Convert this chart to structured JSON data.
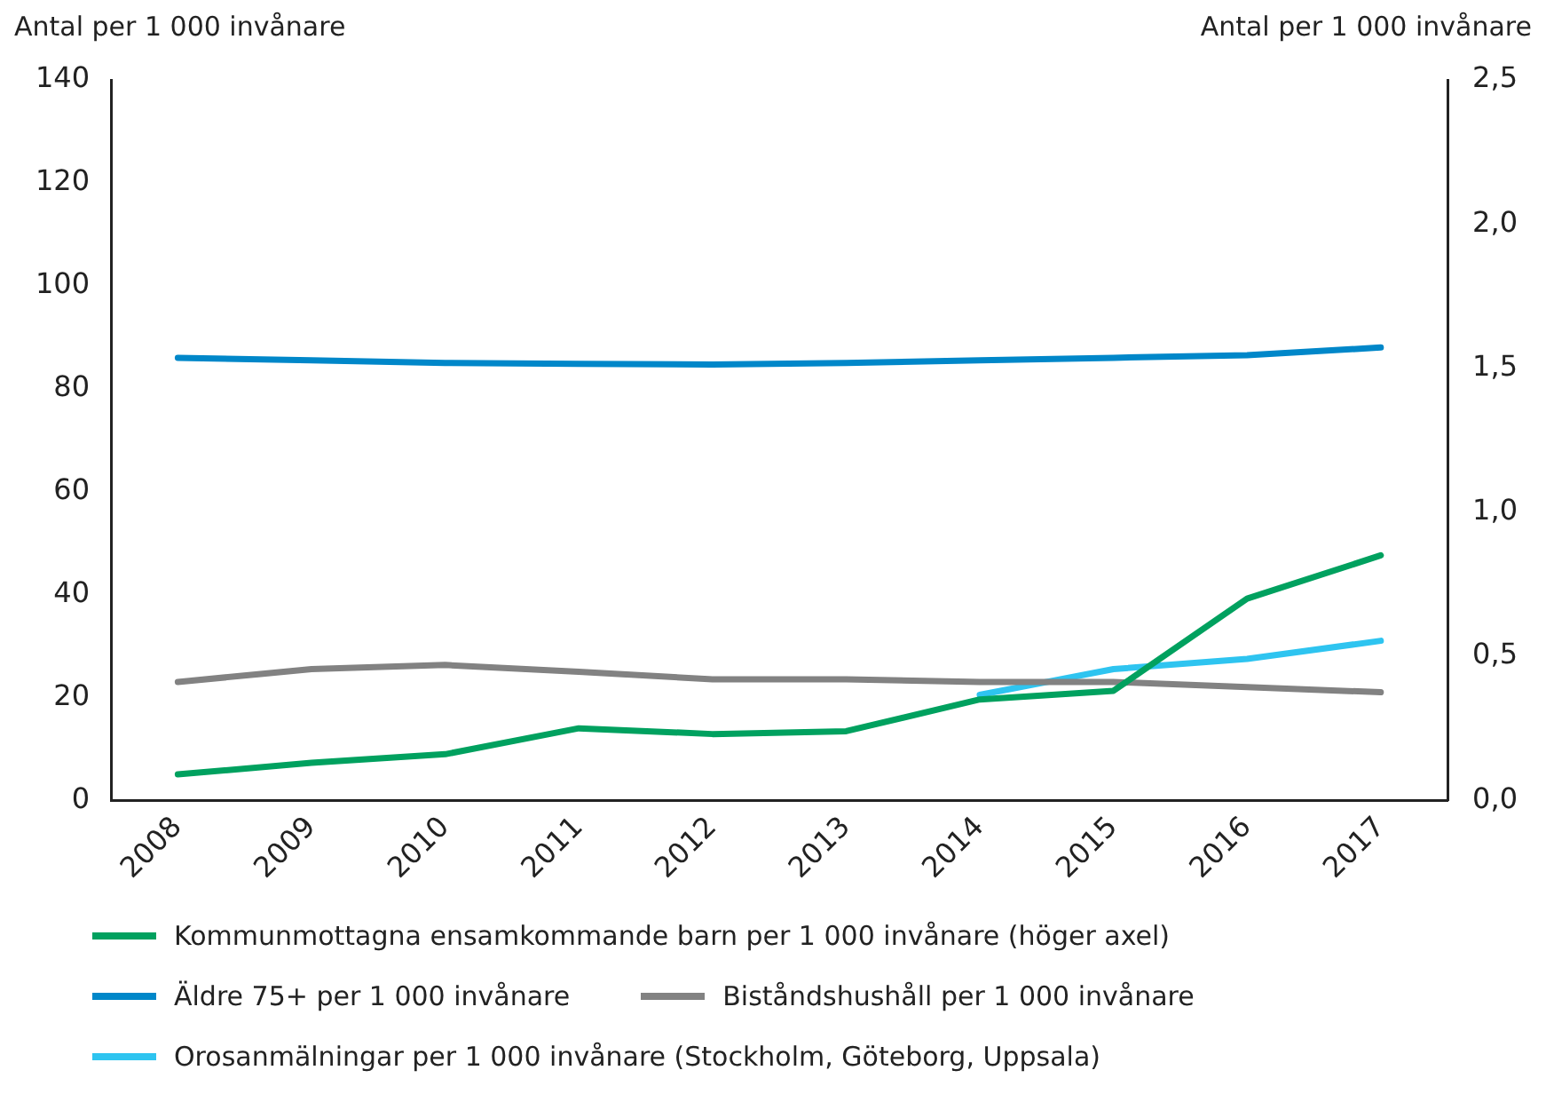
{
  "chart_data": {
    "type": "line",
    "ylabel": "Antal per 1 000 invånare",
    "y2label": "Antal per 1 000 invånare",
    "categories": [
      "2008",
      "2009",
      "2010",
      "2011",
      "2012",
      "2013",
      "2014",
      "2015",
      "2016",
      "2017"
    ],
    "series": [
      {
        "name": "Kommunmottagna ensamkommande barn per 1 000 invånare (höger axel)",
        "color": "#00a15f",
        "axis": "y2",
        "values": [
          0.09,
          0.13,
          0.16,
          0.25,
          0.23,
          0.24,
          0.35,
          0.38,
          0.7,
          0.85
        ]
      },
      {
        "name": "Äldre 75+ per 1 000 invånare",
        "color": "#0087c9",
        "values": [
          86,
          85.5,
          85,
          84.8,
          84.7,
          85,
          85.5,
          86,
          86.5,
          88
        ]
      },
      {
        "name": "Biståndshushåll per 1 000 invånare",
        "color": "#828282",
        "values": [
          23,
          25.5,
          26.3,
          25,
          23.5,
          23.5,
          23,
          23,
          22,
          21
        ]
      },
      {
        "name": "Orosanmälningar per 1 000 invånare (Stockholm, Göteborg, Uppsala)",
        "color": "#2ec4f0",
        "values": [
          null,
          null,
          null,
          null,
          null,
          null,
          20.5,
          25.5,
          27.5,
          31
        ]
      }
    ],
    "ylim": [
      0,
      140
    ],
    "yticks": [
      0,
      20,
      40,
      60,
      80,
      100,
      120,
      140
    ],
    "y2lim": [
      0,
      2.5
    ],
    "y2ticks": [
      {
        "value": 0,
        "label": "0,0"
      },
      {
        "value": 0.5,
        "label": "0,5"
      },
      {
        "value": 1,
        "label": "1,0"
      },
      {
        "value": 1.5,
        "label": "1,5"
      },
      {
        "value": 2,
        "label": "2,0"
      },
      {
        "value": 2.5,
        "label": "2,5"
      }
    ],
    "grid": false,
    "legend": "bottom",
    "marker": "none",
    "line_style": "solid"
  }
}
